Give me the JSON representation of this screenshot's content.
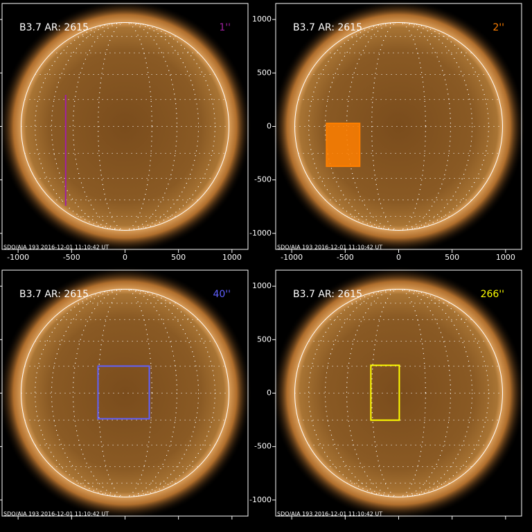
{
  "chart_data": {
    "type": "image-panels",
    "xlim": [
      -1150,
      1150
    ],
    "ylim": [
      -1150,
      1150
    ],
    "xticks": [
      -1000,
      -500,
      0,
      500,
      1000
    ],
    "yticks": [
      -1000,
      -500,
      0,
      500,
      1000
    ],
    "footer": "SDO/AIA 193 2016-12-01 11:10:42 UT",
    "panels": [
      {
        "title": "B3.7 AR: 2615",
        "label": "1''",
        "color": "#a020a0",
        "x_labels": true,
        "y_labels": false,
        "overlay": {
          "kind": "line",
          "x": [
            -555,
            -555
          ],
          "y": [
            295,
            -743
          ]
        }
      },
      {
        "title": "B3.7 AR: 2615",
        "label": "2''",
        "color": "#ff7f00",
        "x_labels": true,
        "y_labels": true,
        "overlay": {
          "kind": "filled-box",
          "x": [
            -675,
            -364
          ],
          "y": [
            29,
            -373
          ]
        }
      },
      {
        "title": "B3.7 AR: 2615",
        "label": "40''",
        "color": "#6060ff",
        "x_labels": false,
        "y_labels": false,
        "overlay": {
          "kind": "box",
          "x": [
            -253,
            227
          ],
          "y": [
            253,
            -240
          ]
        }
      },
      {
        "title": "B3.7 AR: 2615",
        "label": "266''",
        "color": "#ffff00",
        "x_labels": false,
        "y_labels": true,
        "overlay": {
          "kind": "box",
          "x": [
            -260,
            6
          ],
          "y": [
            260,
            -253
          ]
        }
      }
    ]
  }
}
